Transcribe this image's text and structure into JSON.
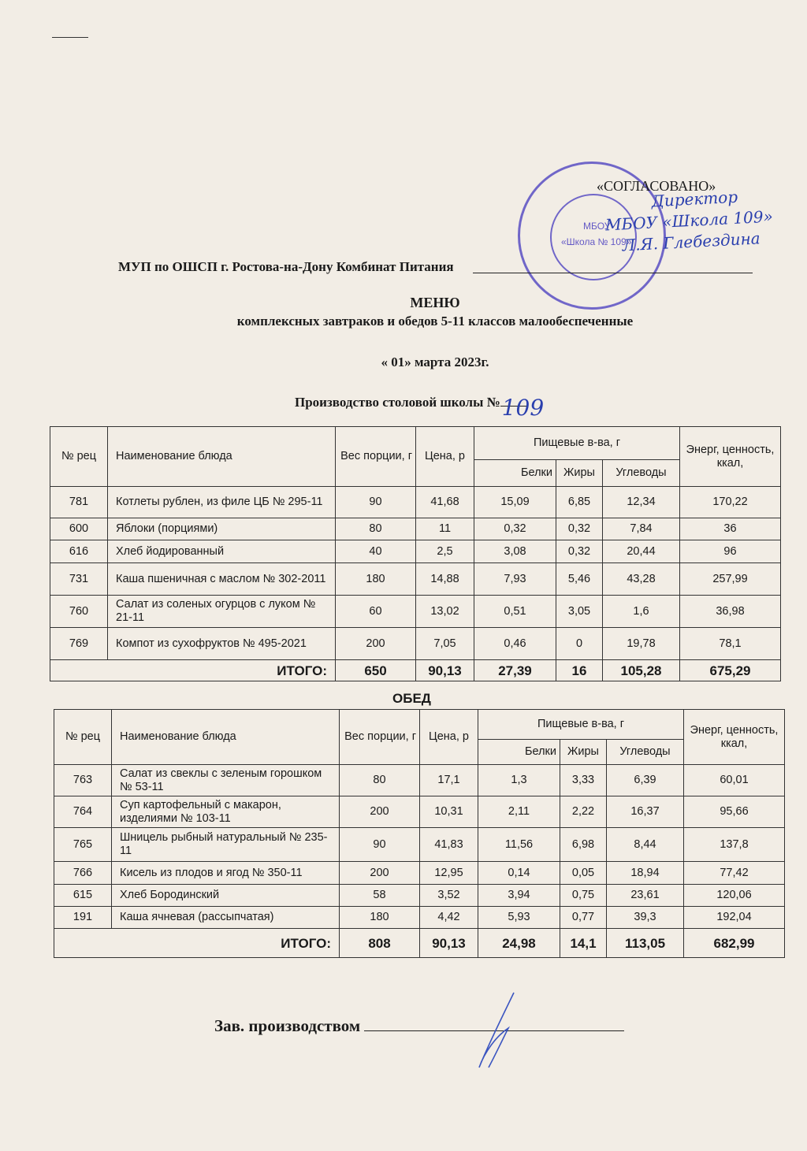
{
  "approval": {
    "label": "«СОГЛАСОВАНО»",
    "handwritten_lines": [
      "Директор",
      "МБОУ «Школа 109»",
      "Л.Я. Глебездина"
    ],
    "stamp_text": [
      "МБОУ",
      "«Школа № 109»"
    ],
    "stamp_color": "#4b3fc0"
  },
  "organization": "МУП по ОШСП г. Ростова-на-Дону Комбинат Питания",
  "title": "МЕНЮ",
  "subtitle": "комплексных завтраков и обедов 5-11 классов малообеспеченные",
  "date": "« 01» марта 2023г.",
  "production": {
    "label": "Производство столовой школы №",
    "school_number": "109"
  },
  "headers": {
    "num": "№ рец",
    "name": "Наименование блюда",
    "weight": "Вес порции, г",
    "price": "Цена, р",
    "nutrients": "Пищевые в-ва, г",
    "protein": "Белки",
    "fat": "Жиры",
    "carbs": "Углеводы",
    "energy": "Энерг, ценность, ккал,"
  },
  "breakfast": {
    "rows": [
      [
        "781",
        "Котлеты рублен, из филе ЦБ № 295-11",
        "90",
        "41,68",
        "15,09",
        "6,85",
        "12,34",
        "170,22"
      ],
      [
        "600",
        "Яблоки (порциями)",
        "80",
        "11",
        "0,32",
        "0,32",
        "7,84",
        "36"
      ],
      [
        "616",
        "Хлеб йодированный",
        "40",
        "2,5",
        "3,08",
        "0,32",
        "20,44",
        "96"
      ],
      [
        "731",
        "Каша пшеничная с маслом № 302-2011",
        "180",
        "14,88",
        "7,93",
        "5,46",
        "43,28",
        "257,99"
      ],
      [
        "760",
        "Салат из соленых огурцов с луком № 21-11",
        "60",
        "13,02",
        "0,51",
        "3,05",
        "1,6",
        "36,98"
      ],
      [
        "769",
        "Компот из сухофруктов № 495-2021",
        "200",
        "7,05",
        "0,46",
        "0",
        "19,78",
        "78,1"
      ]
    ],
    "total": [
      "ИТОГО:",
      "650",
      "90,13",
      "27,39",
      "16",
      "105,28",
      "675,29"
    ]
  },
  "lunch": {
    "label": "ОБЕД",
    "rows": [
      [
        "763",
        "Салат из свеклы с зеленым горошком № 53-11",
        "80",
        "17,1",
        "1,3",
        "3,33",
        "6,39",
        "60,01"
      ],
      [
        "764",
        "Суп картофельный с макарон, изделиями № 103-11",
        "200",
        "10,31",
        "2,11",
        "2,22",
        "16,37",
        "95,66"
      ],
      [
        "765",
        "Шницель рыбный натуральный № 235-11",
        "90",
        "41,83",
        "11,56",
        "6,98",
        "8,44",
        "137,8"
      ],
      [
        "766",
        "Кисель из плодов и ягод № 350-11",
        "200",
        "12,95",
        "0,14",
        "0,05",
        "18,94",
        "77,42"
      ],
      [
        "615",
        "Хлеб Бородинский",
        "58",
        "3,52",
        "3,94",
        "0,75",
        "23,61",
        "120,06"
      ],
      [
        "191",
        "Каша ячневая (рассыпчатая)",
        "180",
        "4,42",
        "5,93",
        "0,77",
        "39,3",
        "192,04"
      ]
    ],
    "total": [
      "ИТОГО:",
      "808",
      "90,13",
      "24,98",
      "14,1",
      "113,05",
      "682,99"
    ]
  },
  "footer": {
    "label": "Зав. производством"
  }
}
